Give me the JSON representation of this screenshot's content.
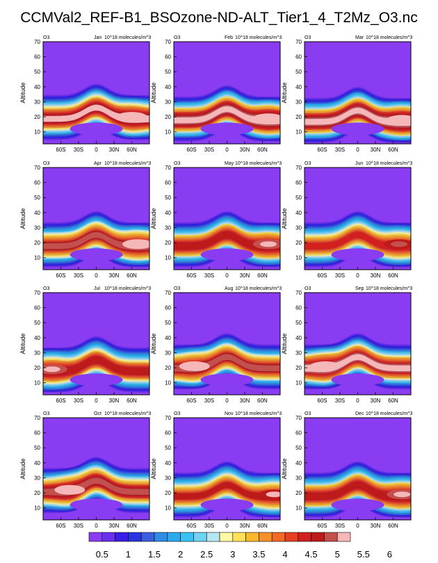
{
  "page_title": "CCMVal2_REF-B1_BSOzone-ND-ALT_Tier1_4_T2Mz_O3.nc",
  "colors": {
    "levels": [
      "#8a3cf2",
      "#6a2ff0",
      "#3a1ee6",
      "#2a34e3",
      "#3c5ddf",
      "#2f8be6",
      "#2aa9ee",
      "#39c2f3",
      "#6fd3f2",
      "#b7e6f3",
      "#fff9a6",
      "#fde15a",
      "#fbb82b",
      "#f7922a",
      "#f26a25",
      "#e63f22",
      "#d41f1f",
      "#bf1a1a",
      "#c4504e",
      "#f5b7b8"
    ],
    "background_level_0": "#8a3cf2"
  },
  "chart_data": {
    "type": "contour",
    "variable_label": "O3",
    "units": "10^18 molecules/m^3",
    "ylabel": "Altitude",
    "yticks": [
      "10",
      "20",
      "30",
      "40",
      "50",
      "60",
      "70"
    ],
    "xticks": [
      "60S",
      "30S",
      "0",
      "30N",
      "60N"
    ],
    "ylim": [
      2,
      70
    ],
    "xlim": [
      -90,
      90
    ],
    "colorbar": {
      "labels": [
        "0.5",
        "1",
        "1.5",
        "2",
        "2.5",
        "3",
        "3.5",
        "4",
        "4.5",
        "5",
        "5.5",
        "6"
      ]
    },
    "panels": [
      {
        "month": "Jan",
        "peak_latitude": 60,
        "peak_value": 5.5,
        "peak_altitude": 20
      },
      {
        "month": "Feb",
        "peak_latitude": 70,
        "peak_value": 5.8,
        "peak_altitude": 19
      },
      {
        "month": "Mar",
        "peak_latitude": 75,
        "peak_value": 5.8,
        "peak_altitude": 18
      },
      {
        "month": "Apr",
        "peak_latitude": 70,
        "peak_value": 5.3,
        "peak_altitude": 19
      },
      {
        "month": "May",
        "peak_latitude": 70,
        "peak_value": 5.2,
        "peak_altitude": 19
      },
      {
        "month": "Jun",
        "peak_latitude": 70,
        "peak_value": 4.9,
        "peak_altitude": 19
      },
      {
        "month": "Jul",
        "peak_latitude": -75,
        "peak_value": 5.1,
        "peak_altitude": 19
      },
      {
        "month": "Aug",
        "peak_latitude": -55,
        "peak_value": 5.3,
        "peak_altitude": 21
      },
      {
        "month": "Sep",
        "peak_latitude": -55,
        "peak_value": 5.6,
        "peak_altitude": 21
      },
      {
        "month": "Oct",
        "peak_latitude": -45,
        "peak_value": 5.4,
        "peak_altitude": 22
      },
      {
        "month": "Nov",
        "peak_latitude": 80,
        "peak_value": 5.0,
        "peak_altitude": 19
      },
      {
        "month": "Dec",
        "peak_latitude": 75,
        "peak_value": 5.2,
        "peak_altitude": 19
      }
    ]
  }
}
